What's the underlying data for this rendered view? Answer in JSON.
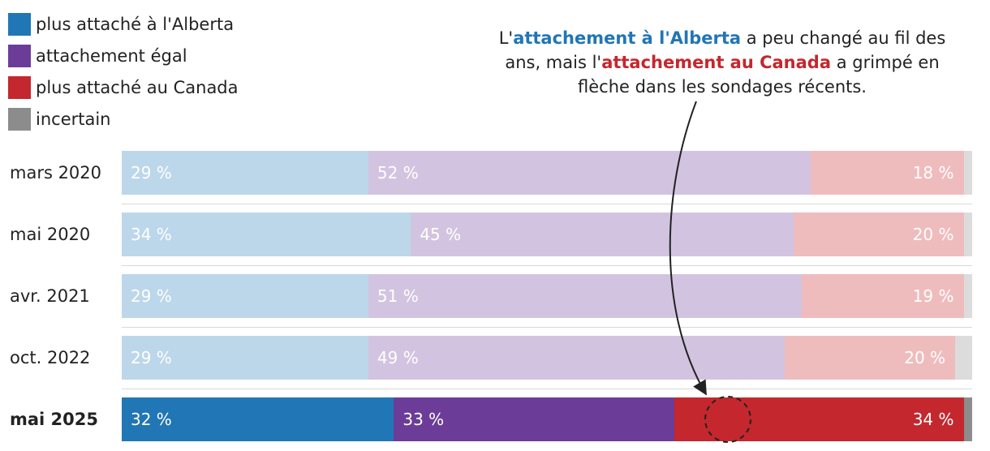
{
  "legend": [
    {
      "label": "plus attaché à l'Alberta",
      "color": "#2176b5",
      "icon": "square-swatch"
    },
    {
      "label": "attachement égal",
      "color": "#6b3d99",
      "icon": "square-swatch"
    },
    {
      "label": "plus attaché au Canada",
      "color": "#c4272e",
      "icon": "square-swatch"
    },
    {
      "label": "incertain",
      "color": "#8c8c8c",
      "icon": "square-swatch"
    }
  ],
  "annotation": {
    "p1": "L'",
    "alberta": "attachement à l'Alberta",
    "p2": " a peu changé au fil des ans, mais l'",
    "canada": "attachement au Canada",
    "p3": " a grimpé en flèche dans les sondages récents."
  },
  "chart_data": {
    "type": "bar",
    "orientation": "horizontal-stacked-100",
    "title": "",
    "categories": [
      "mars 2020",
      "mai 2020",
      "avr. 2021",
      "oct. 2022",
      "mai 2025"
    ],
    "highlight_category": "mai 2025",
    "series": [
      {
        "name": "plus attaché à l'Alberta",
        "values": [
          29,
          34,
          29,
          29,
          32
        ],
        "labels": [
          "29 %",
          "34 %",
          "29 %",
          "29 %",
          "32 %"
        ],
        "color": "#2176b5",
        "faded_color": "#bcd7ea"
      },
      {
        "name": "attachement égal",
        "values": [
          52,
          45,
          51,
          49,
          33
        ],
        "labels": [
          "52 %",
          "45 %",
          "51 %",
          "49 %",
          "33 %"
        ],
        "color": "#6b3d99",
        "faded_color": "#d2c4e0"
      },
      {
        "name": "plus attaché au Canada",
        "values": [
          18,
          20,
          19,
          20,
          34
        ],
        "labels": [
          "18 %",
          "20 %",
          "19 %",
          "20 %",
          "34 %"
        ],
        "color": "#c4272e",
        "faded_color": "#efbcbe"
      },
      {
        "name": "incertain",
        "values": [
          1,
          1,
          1,
          2,
          1
        ],
        "labels": [
          "",
          "",
          "",
          "",
          ""
        ],
        "color": "#8c8c8c",
        "faded_color": "#dcdcdc"
      }
    ],
    "xlim": [
      0,
      100
    ],
    "grid": false,
    "legend_position": "top-left"
  }
}
